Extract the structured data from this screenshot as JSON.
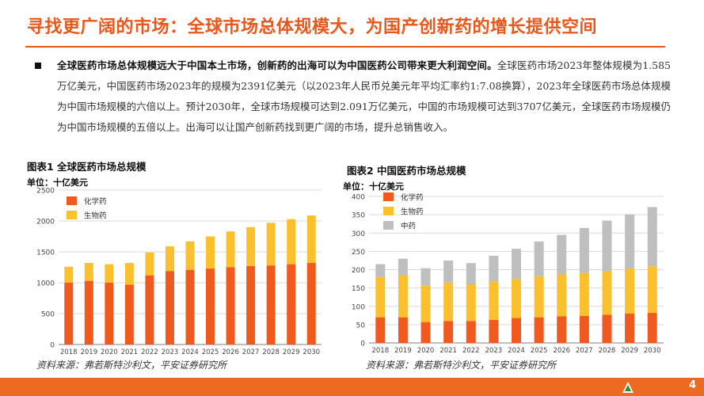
{
  "page": {
    "title": "寻找更广阔的市场：全球市场总体规模大，为国产创新药的增长提供空间",
    "bullet_bold": "全球医药市场总体规模远大于中国本土市场，创新药的出海可以为中国医药公司带来更大利润空间。",
    "bullet_text": "全球医药市场2023年整体规模为1.585万亿美元，中国医药市场2023年的规模为2391亿美元（以2023年人民币兑美元年平均汇率约1:7.08换算），2023年全球医药市场总体规模为中国市场规模的六倍以上。预计2030年，全球市场规模可达到2.091万亿美元，中国的市场规模可达到3707亿美元，全球医药市场规模仍为中国市场规模的五倍以上。出海可以让国产创新药找到更广阔的市场，提升总销售收入。",
    "page_number": "4"
  },
  "colors": {
    "accent": "#e8571b",
    "chemical": "#f15a1e",
    "biological": "#fbc02d",
    "tcm": "#bfbfbf"
  },
  "figure1": {
    "title": "图表1 全球医药市场总规模",
    "unit": "单位：十亿美元",
    "source": "资料来源：弗若斯特沙利文，平安证券研究所"
  },
  "figure2": {
    "title": "图表2 中国医药市场总规模",
    "unit": "单位：十亿美元",
    "source": "资料来源：弗若斯特沙利文，平安证券研究所"
  },
  "chart_data": [
    {
      "type": "bar",
      "stacked": true,
      "title": "图表1 全球医药市场总规模",
      "ylabel": "单位：十亿美元",
      "ylim": [
        0,
        2500
      ],
      "yticks": [
        0,
        500,
        1000,
        1500,
        2000,
        2500
      ],
      "grid": true,
      "legend": "top-left",
      "categories": [
        "2018",
        "2019",
        "2020",
        "2021",
        "2022",
        "2023",
        "2024",
        "2025",
        "2026",
        "2027",
        "2028",
        "2029",
        "2030"
      ],
      "series": [
        {
          "name": "化学药",
          "color": "#f15a1e",
          "values": [
            1000,
            1030,
            1000,
            970,
            1120,
            1190,
            1210,
            1230,
            1250,
            1270,
            1280,
            1300,
            1320
          ]
        },
        {
          "name": "生物药",
          "color": "#fbc02d",
          "values": [
            260,
            290,
            300,
            350,
            370,
            400,
            460,
            520,
            580,
            630,
            690,
            730,
            770
          ]
        }
      ]
    },
    {
      "type": "bar",
      "stacked": true,
      "title": "图表2 中国医药市场总规模",
      "ylabel": "单位：十亿美元",
      "ylim": [
        0,
        400
      ],
      "yticks": [
        0,
        50,
        100,
        150,
        200,
        250,
        300,
        350,
        400
      ],
      "grid": true,
      "legend": "top-left",
      "categories": [
        "2018",
        "2019",
        "2020",
        "2021",
        "2022",
        "2023",
        "2024",
        "2025",
        "2026",
        "2027",
        "2028",
        "2029",
        "2030"
      ],
      "series": [
        {
          "name": "化学药",
          "color": "#f15a1e",
          "values": [
            70,
            70,
            57,
            60,
            60,
            63,
            68,
            70,
            73,
            74,
            77,
            80,
            82
          ]
        },
        {
          "name": "生物药",
          "color": "#fbc02d",
          "values": [
            110,
            115,
            100,
            105,
            100,
            105,
            107,
            112,
            114,
            117,
            120,
            123,
            127
          ]
        },
        {
          "name": "中药",
          "color": "#bfbfbf",
          "values": [
            35,
            45,
            47,
            60,
            58,
            70,
            82,
            95,
            108,
            123,
            137,
            148,
            162
          ]
        }
      ]
    }
  ]
}
